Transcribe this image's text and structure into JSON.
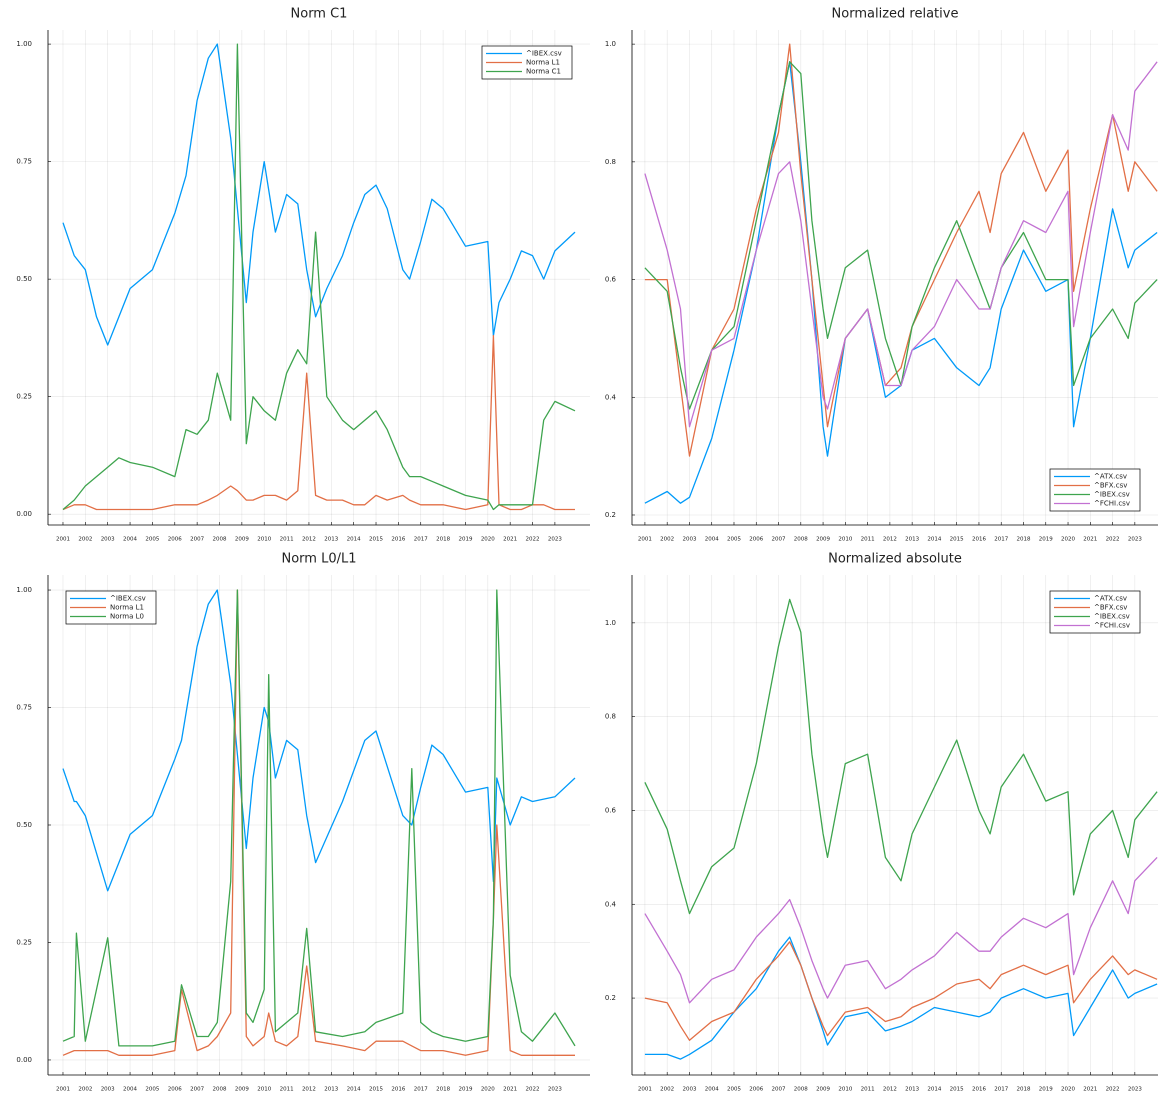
{
  "chart_data": [
    {
      "type": "line",
      "title": "Norm C1",
      "legend": "upper right",
      "grid": true,
      "x": [
        2001.0,
        2001.5,
        2002.0,
        2002.5,
        2003.0,
        2003.5,
        2004.0,
        2005.0,
        2006.0,
        2006.5,
        2007.0,
        2007.5,
        2007.9,
        2008.5,
        2008.8,
        2009.2,
        2009.5,
        2010.0,
        2010.5,
        2011.0,
        2011.5,
        2011.9,
        2012.3,
        2012.8,
        2013.5,
        2014.0,
        2014.5,
        2015.0,
        2015.5,
        2016.2,
        2016.5,
        2017.0,
        2017.5,
        2018.0,
        2019.0,
        2020.0,
        2020.25,
        2020.5,
        2021.0,
        2021.5,
        2022.0,
        2022.5,
        2023.0,
        2023.9
      ],
      "series": [
        {
          "name": "^IBEX.csv",
          "color": "#009af9",
          "values": [
            0.62,
            0.55,
            0.52,
            0.42,
            0.36,
            0.42,
            0.48,
            0.52,
            0.64,
            0.72,
            0.88,
            0.97,
            1.0,
            0.8,
            0.65,
            0.45,
            0.6,
            0.75,
            0.6,
            0.68,
            0.66,
            0.52,
            0.42,
            0.48,
            0.55,
            0.62,
            0.68,
            0.7,
            0.65,
            0.52,
            0.5,
            0.58,
            0.67,
            0.65,
            0.57,
            0.58,
            0.38,
            0.45,
            0.5,
            0.56,
            0.55,
            0.5,
            0.56,
            0.6
          ]
        },
        {
          "name": "Norma L1",
          "color": "#e26f46",
          "values": [
            0.01,
            0.02,
            0.02,
            0.01,
            0.01,
            0.01,
            0.01,
            0.01,
            0.02,
            0.02,
            0.02,
            0.03,
            0.04,
            0.06,
            0.05,
            0.03,
            0.03,
            0.04,
            0.04,
            0.03,
            0.05,
            0.3,
            0.04,
            0.03,
            0.03,
            0.02,
            0.02,
            0.04,
            0.03,
            0.04,
            0.03,
            0.02,
            0.02,
            0.02,
            0.01,
            0.02,
            0.38,
            0.02,
            0.01,
            0.01,
            0.02,
            0.02,
            0.01,
            0.01
          ]
        },
        {
          "name": "Norma C1",
          "color": "#3ea44e",
          "values": [
            0.01,
            0.03,
            0.06,
            0.08,
            0.1,
            0.12,
            0.11,
            0.1,
            0.08,
            0.18,
            0.17,
            0.2,
            0.3,
            0.2,
            1.0,
            0.15,
            0.25,
            0.22,
            0.2,
            0.3,
            0.35,
            0.32,
            0.6,
            0.25,
            0.2,
            0.18,
            0.2,
            0.22,
            0.18,
            0.1,
            0.08,
            0.08,
            0.07,
            0.06,
            0.04,
            0.03,
            0.01,
            0.02,
            0.02,
            0.02,
            0.02,
            0.2,
            0.24,
            0.22
          ]
        }
      ],
      "xlim": [
        2000.33,
        2024.57
      ],
      "xticks": [
        2001,
        2002,
        2003,
        2004,
        2005,
        2006,
        2007,
        2008,
        2009,
        2010,
        2011,
        2012,
        2013,
        2014,
        2015,
        2016,
        2017,
        2018,
        2019,
        2020,
        2021,
        2022,
        2023
      ],
      "ylim": [
        -0.023,
        1.03
      ],
      "yticks": [
        {
          "value": 0,
          "label": "0.00"
        },
        {
          "value": 0.25,
          "label": "0.25"
        },
        {
          "value": 0.5,
          "label": "0.50"
        },
        {
          "value": 0.75,
          "label": "0.75"
        },
        {
          "value": 1,
          "label": "1.00"
        }
      ]
    },
    {
      "type": "line",
      "title": "Normalized relative",
      "legend": "lower right",
      "grid": true,
      "x": [
        2001,
        2002,
        2002.6,
        2003.0,
        2004,
        2005,
        2006,
        2007,
        2007.5,
        2008,
        2008.5,
        2009.0,
        2009.2,
        2010,
        2011,
        2011.8,
        2012.5,
        2013,
        2014,
        2015,
        2016,
        2016.5,
        2017,
        2018,
        2019,
        2020,
        2020.25,
        2021,
        2022,
        2022.7,
        2023,
        2024
      ],
      "series": [
        {
          "name": "^ATX.csv",
          "color": "#009af9",
          "values": [
            0.22,
            0.24,
            0.22,
            0.23,
            0.33,
            0.48,
            0.65,
            0.88,
            0.97,
            0.8,
            0.6,
            0.35,
            0.3,
            0.5,
            0.55,
            0.4,
            0.42,
            0.48,
            0.5,
            0.45,
            0.42,
            0.45,
            0.55,
            0.65,
            0.58,
            0.6,
            0.35,
            0.5,
            0.72,
            0.62,
            0.65,
            0.68
          ]
        },
        {
          "name": "^BFX.csv",
          "color": "#e26f46",
          "values": [
            0.6,
            0.6,
            0.42,
            0.3,
            0.48,
            0.55,
            0.72,
            0.85,
            1.0,
            0.78,
            0.6,
            0.42,
            0.35,
            0.5,
            0.55,
            0.42,
            0.45,
            0.52,
            0.6,
            0.68,
            0.75,
            0.68,
            0.78,
            0.85,
            0.75,
            0.82,
            0.58,
            0.72,
            0.88,
            0.75,
            0.8,
            0.75
          ]
        },
        {
          "name": "^IBEX.csv",
          "color": "#3ea44e",
          "values": [
            0.62,
            0.58,
            0.45,
            0.38,
            0.48,
            0.52,
            0.7,
            0.88,
            0.97,
            0.95,
            0.7,
            0.55,
            0.5,
            0.62,
            0.65,
            0.5,
            0.42,
            0.52,
            0.62,
            0.7,
            0.6,
            0.55,
            0.62,
            0.68,
            0.6,
            0.6,
            0.42,
            0.5,
            0.55,
            0.5,
            0.56,
            0.6
          ]
        },
        {
          "name": "^FCHI.csv",
          "color": "#c271d2",
          "values": [
            0.78,
            0.65,
            0.55,
            0.35,
            0.48,
            0.5,
            0.65,
            0.78,
            0.8,
            0.7,
            0.55,
            0.4,
            0.38,
            0.5,
            0.55,
            0.42,
            0.42,
            0.48,
            0.52,
            0.6,
            0.55,
            0.55,
            0.62,
            0.7,
            0.68,
            0.75,
            0.52,
            0.68,
            0.88,
            0.82,
            0.92,
            0.97
          ]
        }
      ],
      "xlim": [
        2000.42,
        2024.04
      ],
      "xticks": [
        2001,
        2002,
        2003,
        2004,
        2005,
        2006,
        2007,
        2008,
        2009,
        2010,
        2011,
        2012,
        2013,
        2014,
        2015,
        2016,
        2017,
        2018,
        2019,
        2020,
        2021,
        2022,
        2023
      ],
      "ylim": [
        0.183,
        1.024
      ],
      "yticks": [
        0.2,
        0.4,
        0.6,
        0.8,
        {
          "value": 1,
          "label": "1.0"
        }
      ]
    },
    {
      "type": "line",
      "title": "Norm L0/L1",
      "legend": "upper left",
      "grid": true,
      "x": [
        2001.0,
        2001.5,
        2001.6,
        2002.0,
        2003.0,
        2003.5,
        2004.0,
        2005.0,
        2006.0,
        2006.3,
        2007.0,
        2007.5,
        2007.9,
        2008.5,
        2008.8,
        2009.2,
        2009.5,
        2010.0,
        2010.2,
        2010.5,
        2011.0,
        2011.5,
        2011.9,
        2012.3,
        2013.5,
        2014.5,
        2015.0,
        2016.2,
        2016.6,
        2017.0,
        2017.5,
        2018.0,
        2019.0,
        2020.0,
        2020.25,
        2020.4,
        2021.0,
        2021.5,
        2022.0,
        2023.0,
        2023.9
      ],
      "series": [
        {
          "name": "^IBEX.csv",
          "color": "#009af9",
          "values": [
            0.62,
            0.55,
            0.55,
            0.52,
            0.36,
            0.42,
            0.48,
            0.52,
            0.64,
            0.68,
            0.88,
            0.97,
            1.0,
            0.8,
            0.65,
            0.45,
            0.6,
            0.75,
            0.72,
            0.6,
            0.68,
            0.66,
            0.52,
            0.42,
            0.55,
            0.68,
            0.7,
            0.52,
            0.5,
            0.58,
            0.67,
            0.65,
            0.57,
            0.58,
            0.38,
            0.6,
            0.5,
            0.56,
            0.55,
            0.56,
            0.6
          ]
        },
        {
          "name": "Norma L1",
          "color": "#e26f46",
          "values": [
            0.01,
            0.02,
            0.02,
            0.02,
            0.02,
            0.01,
            0.01,
            0.01,
            0.02,
            0.15,
            0.02,
            0.03,
            0.05,
            0.1,
            1.0,
            0.05,
            0.03,
            0.05,
            0.1,
            0.04,
            0.03,
            0.05,
            0.2,
            0.04,
            0.03,
            0.02,
            0.04,
            0.04,
            0.03,
            0.02,
            0.02,
            0.02,
            0.01,
            0.02,
            0.3,
            0.5,
            0.02,
            0.01,
            0.01,
            0.01,
            0.01
          ]
        },
        {
          "name": "Norma L0",
          "color": "#3ea44e",
          "values": [
            0.04,
            0.05,
            0.27,
            0.04,
            0.26,
            0.03,
            0.03,
            0.03,
            0.04,
            0.16,
            0.05,
            0.05,
            0.08,
            0.38,
            1.0,
            0.1,
            0.08,
            0.15,
            0.82,
            0.06,
            0.08,
            0.1,
            0.28,
            0.06,
            0.05,
            0.06,
            0.08,
            0.1,
            0.62,
            0.08,
            0.06,
            0.05,
            0.04,
            0.05,
            0.3,
            1.0,
            0.18,
            0.06,
            0.04,
            0.1,
            0.03
          ]
        }
      ],
      "xlim": [
        2000.33,
        2024.57
      ],
      "xticks": [
        2001,
        2002,
        2003,
        2004,
        2005,
        2006,
        2007,
        2008,
        2009,
        2010,
        2011,
        2012,
        2013,
        2014,
        2015,
        2016,
        2017,
        2018,
        2019,
        2020,
        2021,
        2022,
        2023
      ],
      "ylim": [
        -0.032,
        1.032
      ],
      "yticks": [
        {
          "value": 0,
          "label": "0.00"
        },
        {
          "value": 0.25,
          "label": "0.25"
        },
        {
          "value": 0.5,
          "label": "0.50"
        },
        {
          "value": 0.75,
          "label": "0.75"
        },
        {
          "value": 1,
          "label": "1.00"
        }
      ]
    },
    {
      "type": "line",
      "title": "Normalized absolute",
      "legend": "upper right",
      "grid": true,
      "x": [
        2001,
        2002,
        2002.6,
        2003.0,
        2004,
        2005,
        2006,
        2007,
        2007.5,
        2008,
        2008.5,
        2009.0,
        2009.2,
        2010,
        2011,
        2011.8,
        2012.5,
        2013,
        2014,
        2015,
        2016,
        2016.5,
        2017,
        2018,
        2019,
        2020,
        2020.25,
        2021,
        2022,
        2022.7,
        2023,
        2024
      ],
      "series": [
        {
          "name": "^ATX.csv",
          "color": "#009af9",
          "values": [
            0.08,
            0.08,
            0.07,
            0.08,
            0.11,
            0.17,
            0.22,
            0.3,
            0.33,
            0.27,
            0.2,
            0.13,
            0.1,
            0.16,
            0.17,
            0.13,
            0.14,
            0.15,
            0.18,
            0.17,
            0.16,
            0.17,
            0.2,
            0.22,
            0.2,
            0.21,
            0.12,
            0.18,
            0.26,
            0.2,
            0.21,
            0.23
          ]
        },
        {
          "name": "^BFX.csv",
          "color": "#e26f46",
          "values": [
            0.2,
            0.19,
            0.14,
            0.11,
            0.15,
            0.17,
            0.24,
            0.29,
            0.32,
            0.27,
            0.2,
            0.14,
            0.12,
            0.17,
            0.18,
            0.15,
            0.16,
            0.18,
            0.2,
            0.23,
            0.24,
            0.22,
            0.25,
            0.27,
            0.25,
            0.27,
            0.19,
            0.24,
            0.29,
            0.25,
            0.26,
            0.24
          ]
        },
        {
          "name": "^IBEX.csv",
          "color": "#3ea44e",
          "values": [
            0.66,
            0.56,
            0.45,
            0.38,
            0.48,
            0.52,
            0.7,
            0.95,
            1.05,
            0.98,
            0.72,
            0.55,
            0.5,
            0.7,
            0.72,
            0.5,
            0.45,
            0.55,
            0.65,
            0.75,
            0.6,
            0.55,
            0.65,
            0.72,
            0.62,
            0.64,
            0.42,
            0.55,
            0.6,
            0.5,
            0.58,
            0.64
          ]
        },
        {
          "name": "^FCHI.csv",
          "color": "#c271d2",
          "values": [
            0.38,
            0.3,
            0.25,
            0.19,
            0.24,
            0.26,
            0.33,
            0.38,
            0.41,
            0.35,
            0.28,
            0.22,
            0.2,
            0.27,
            0.28,
            0.22,
            0.24,
            0.26,
            0.29,
            0.34,
            0.3,
            0.3,
            0.33,
            0.37,
            0.35,
            0.38,
            0.25,
            0.35,
            0.45,
            0.38,
            0.45,
            0.5
          ]
        }
      ],
      "xlim": [
        2000.42,
        2024.04
      ],
      "xticks": [
        2001,
        2002,
        2003,
        2004,
        2005,
        2006,
        2007,
        2008,
        2009,
        2010,
        2011,
        2012,
        2013,
        2014,
        2015,
        2016,
        2017,
        2018,
        2019,
        2020,
        2021,
        2022,
        2023
      ],
      "ylim": [
        0.036,
        1.102
      ],
      "yticks": [
        0.2,
        0.4,
        0.6,
        0.8,
        {
          "value": 1,
          "label": "1.0"
        }
      ]
    }
  ]
}
